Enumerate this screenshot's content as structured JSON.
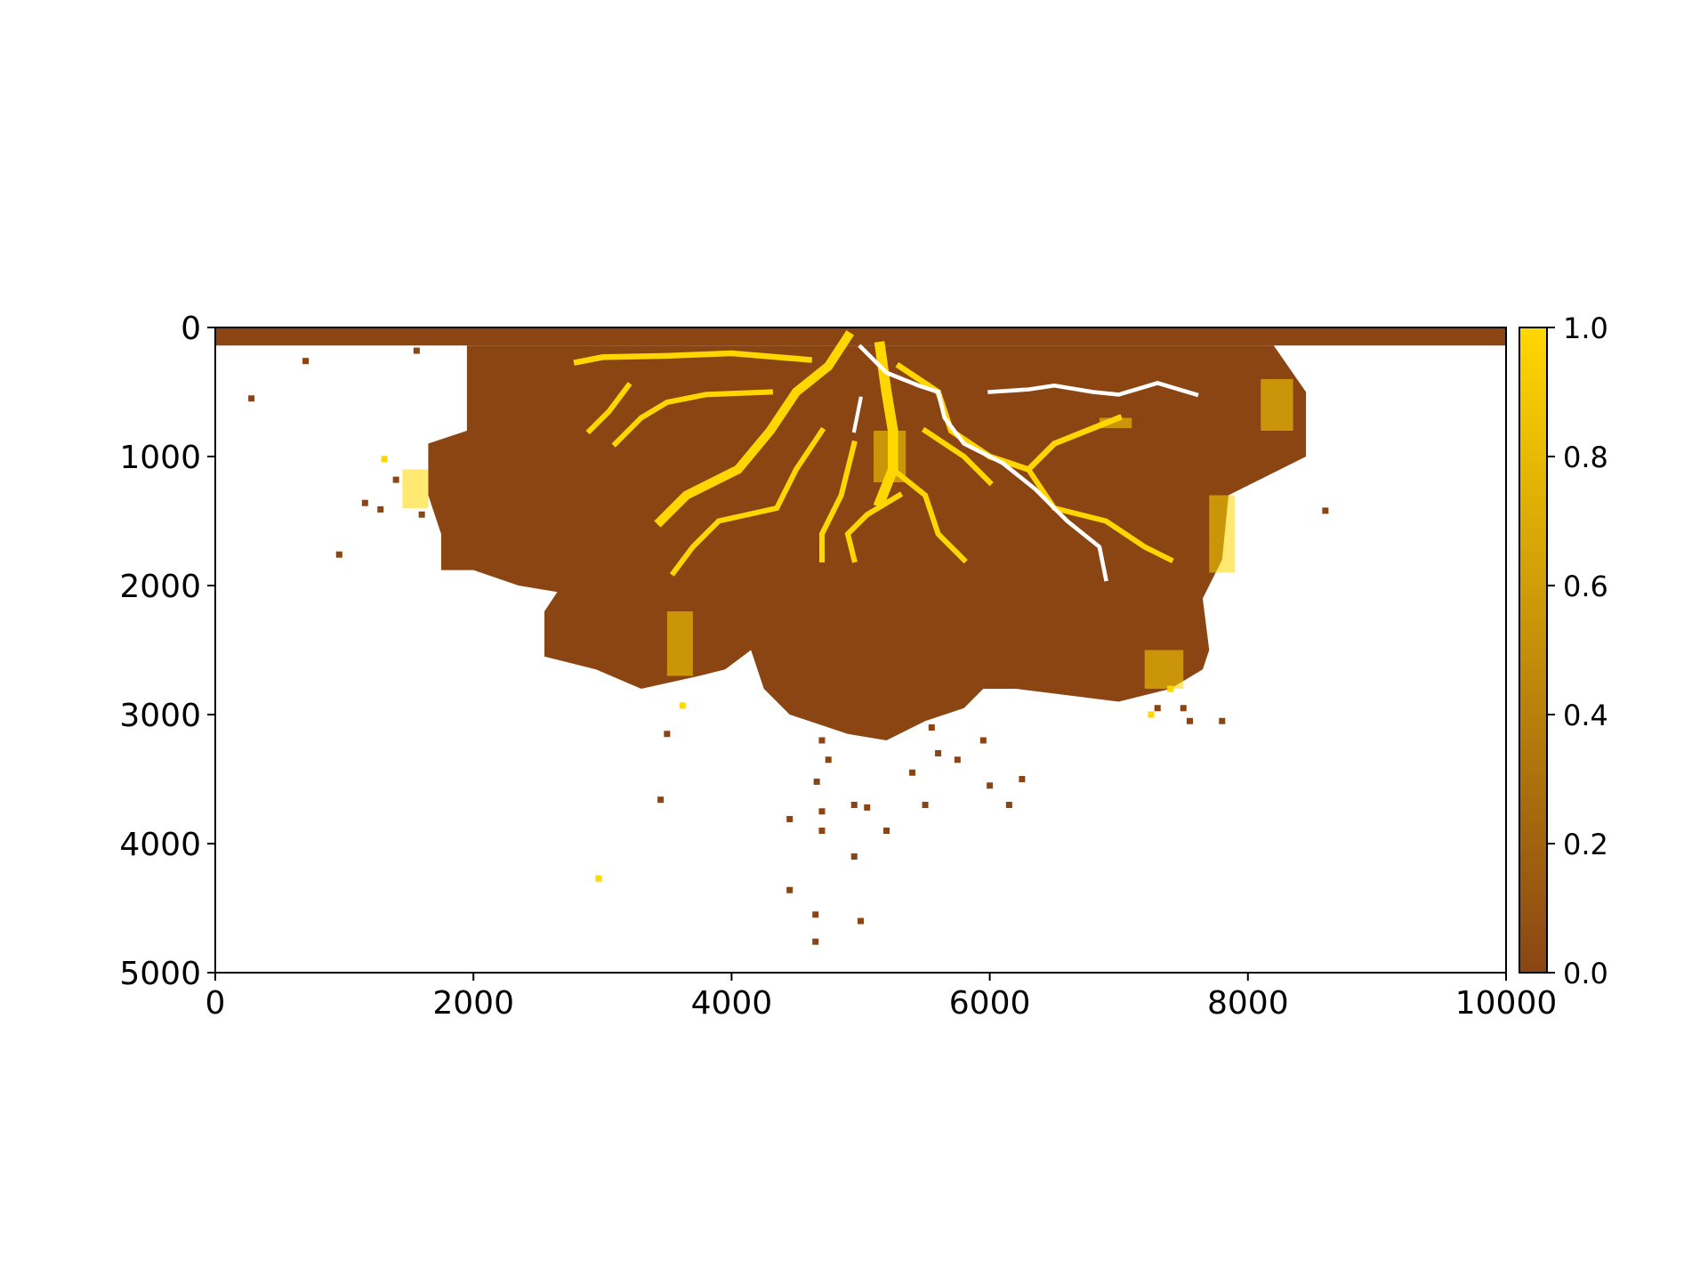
{
  "chart_data": {
    "type": "heatmap",
    "title": "",
    "xlabel": "",
    "ylabel": "",
    "xlim": [
      0,
      10000
    ],
    "ylim": [
      5000,
      0
    ],
    "y_axis_inverted": true,
    "x_ticks": [
      0,
      2000,
      4000,
      6000,
      8000,
      10000
    ],
    "x_tick_labels": [
      "0",
      "2000",
      "4000",
      "6000",
      "8000",
      "10000"
    ],
    "y_ticks": [
      0,
      1000,
      2000,
      3000,
      4000,
      5000
    ],
    "y_tick_labels": [
      "0",
      "1000",
      "2000",
      "3000",
      "4000",
      "5000"
    ],
    "grid": false,
    "colormap": {
      "range": [
        0.0,
        1.0
      ],
      "low_color": "#8B4513",
      "high_color": "#FFD700",
      "ticks": [
        0.0,
        0.2,
        0.4,
        0.6,
        0.8,
        1.0
      ],
      "tick_labels": [
        "0.0",
        "0.2",
        "0.4",
        "0.6",
        "0.8",
        "1.0"
      ]
    },
    "nodata_color": "#FFFFFF",
    "regions": [
      {
        "name": "inlet strip",
        "value": 0.0,
        "polygon": [
          [
            0,
            0
          ],
          [
            10000,
            0
          ],
          [
            10000,
            140
          ],
          [
            0,
            140
          ]
        ]
      },
      {
        "name": "deposit body",
        "value": 0.0,
        "polygon": [
          [
            1950,
            140
          ],
          [
            8200,
            140
          ],
          [
            8450,
            500
          ],
          [
            8450,
            1000
          ],
          [
            7850,
            1300
          ],
          [
            7800,
            1800
          ],
          [
            7650,
            2100
          ],
          [
            7700,
            2500
          ],
          [
            7650,
            2650
          ],
          [
            7400,
            2800
          ],
          [
            7000,
            2900
          ],
          [
            6200,
            2800
          ],
          [
            5950,
            2800
          ],
          [
            5800,
            2950
          ],
          [
            5500,
            3050
          ],
          [
            5200,
            3200
          ],
          [
            4900,
            3150
          ],
          [
            4450,
            3000
          ],
          [
            4250,
            2800
          ],
          [
            4150,
            2500
          ],
          [
            3950,
            2650
          ],
          [
            3750,
            2700
          ],
          [
            3300,
            2800
          ],
          [
            2950,
            2650
          ],
          [
            2550,
            2550
          ],
          [
            2550,
            2200
          ],
          [
            2650,
            2050
          ],
          [
            2350,
            2000
          ],
          [
            2000,
            1880
          ],
          [
            1750,
            1880
          ],
          [
            1750,
            1600
          ],
          [
            1650,
            1300
          ],
          [
            1650,
            900
          ],
          [
            1950,
            800
          ]
        ]
      }
    ],
    "channels": [
      {
        "value": 1.0,
        "width": 70,
        "points": [
          [
            4900,
            70
          ],
          [
            4750,
            300
          ],
          [
            4500,
            500
          ],
          [
            4300,
            800
          ],
          [
            4050,
            1100
          ],
          [
            3650,
            1300
          ],
          [
            3450,
            1500
          ]
        ]
      },
      {
        "value": 1.0,
        "width": 80,
        "points": [
          [
            5150,
            150
          ],
          [
            5200,
            500
          ],
          [
            5250,
            800
          ],
          [
            5250,
            1100
          ],
          [
            5150,
            1350
          ]
        ]
      },
      {
        "value": 1.0,
        "width": 45,
        "points": [
          [
            5300,
            300
          ],
          [
            5600,
            500
          ],
          [
            5700,
            800
          ],
          [
            6000,
            1000
          ],
          [
            6300,
            1100
          ],
          [
            6500,
            900
          ],
          [
            7000,
            700
          ]
        ]
      },
      {
        "value": 1.0,
        "width": 45,
        "points": [
          [
            4600,
            250
          ],
          [
            4000,
            200
          ],
          [
            3500,
            220
          ],
          [
            3000,
            230
          ],
          [
            2800,
            270
          ]
        ]
      },
      {
        "value": 1.0,
        "width": 40,
        "points": [
          [
            4300,
            500
          ],
          [
            3800,
            520
          ],
          [
            3500,
            580
          ],
          [
            3300,
            700
          ],
          [
            3100,
            900
          ]
        ]
      },
      {
        "value": 1.0,
        "width": 40,
        "points": [
          [
            4700,
            800
          ],
          [
            4500,
            1100
          ],
          [
            4350,
            1400
          ],
          [
            3900,
            1500
          ],
          [
            3700,
            1700
          ],
          [
            3550,
            1900
          ]
        ]
      },
      {
        "value": 1.0,
        "width": 40,
        "points": [
          [
            4950,
            900
          ],
          [
            4850,
            1300
          ],
          [
            4700,
            1600
          ],
          [
            4700,
            1800
          ]
        ]
      },
      {
        "value": 1.0,
        "width": 40,
        "points": [
          [
            5250,
            1100
          ],
          [
            5500,
            1300
          ],
          [
            5600,
            1600
          ],
          [
            5800,
            1800
          ]
        ]
      },
      {
        "value": 1.0,
        "width": 40,
        "points": [
          [
            6300,
            1100
          ],
          [
            6500,
            1400
          ],
          [
            6900,
            1500
          ],
          [
            7200,
            1700
          ],
          [
            7400,
            1800
          ]
        ]
      },
      {
        "value": 1.0,
        "width": 40,
        "points": [
          [
            5500,
            800
          ],
          [
            5800,
            1000
          ],
          [
            6000,
            1200
          ]
        ]
      },
      {
        "value": 1.0,
        "width": 40,
        "points": [
          [
            5300,
            1300
          ],
          [
            5050,
            1450
          ],
          [
            4900,
            1600
          ],
          [
            4950,
            1800
          ]
        ]
      },
      {
        "value": 1.0,
        "width": 40,
        "points": [
          [
            3200,
            450
          ],
          [
            3050,
            650
          ],
          [
            2900,
            800
          ]
        ]
      }
    ],
    "nodata_channels": [
      {
        "width": 45,
        "points": [
          [
            5000,
            150
          ],
          [
            5200,
            350
          ],
          [
            5450,
            450
          ],
          [
            5600,
            500
          ]
        ]
      },
      {
        "width": 45,
        "points": [
          [
            5600,
            500
          ],
          [
            5650,
            700
          ],
          [
            5800,
            900
          ],
          [
            6100,
            1050
          ],
          [
            6350,
            1250
          ],
          [
            6600,
            1500
          ],
          [
            6850,
            1700
          ],
          [
            6900,
            1950
          ]
        ]
      },
      {
        "width": 45,
        "points": [
          [
            6000,
            500
          ],
          [
            6300,
            480
          ],
          [
            6500,
            450
          ],
          [
            6800,
            500
          ],
          [
            7000,
            520
          ],
          [
            7300,
            430
          ],
          [
            7600,
            520
          ]
        ]
      },
      {
        "width": 40,
        "points": [
          [
            5000,
            550
          ],
          [
            4950,
            800
          ]
        ]
      }
    ],
    "yellow_patches": [
      {
        "value": 1.0,
        "x0": 3500,
        "y0": 2200,
        "x1": 3700,
        "y1": 2700
      },
      {
        "value": 1.0,
        "x0": 7200,
        "y0": 2500,
        "x1": 7500,
        "y1": 2800
      },
      {
        "value": 1.0,
        "x0": 8100,
        "y0": 400,
        "x1": 8350,
        "y1": 800
      },
      {
        "value": 1.0,
        "x0": 5100,
        "y0": 800,
        "x1": 5350,
        "y1": 1200
      },
      {
        "value": 1.0,
        "x0": 7700,
        "y0": 1300,
        "x1": 7900,
        "y1": 1900
      },
      {
        "value": 1.0,
        "x0": 1450,
        "y0": 1100,
        "x1": 1650,
        "y1": 1400
      },
      {
        "value": 1.0,
        "x0": 6850,
        "y0": 700,
        "x1": 7100,
        "y1": 780
      }
    ],
    "scattered_cells": {
      "value": 0.0,
      "points": [
        [
          280,
          550
        ],
        [
          700,
          260
        ],
        [
          1560,
          180
        ],
        [
          960,
          1760
        ],
        [
          1160,
          1360
        ],
        [
          1280,
          1410
        ],
        [
          1400,
          1180
        ],
        [
          1600,
          1450
        ],
        [
          8600,
          1420
        ],
        [
          3500,
          3150
        ],
        [
          3450,
          3660
        ],
        [
          4450,
          3810
        ],
        [
          4600,
          2980
        ],
        [
          4700,
          3200
        ],
        [
          4750,
          3350
        ],
        [
          4660,
          3520
        ],
        [
          4950,
          3700
        ],
        [
          5050,
          3720
        ],
        [
          4700,
          3750
        ],
        [
          4700,
          3900
        ],
        [
          4950,
          4100
        ],
        [
          5200,
          3900
        ],
        [
          5400,
          3450
        ],
        [
          5500,
          3700
        ],
        [
          5600,
          3300
        ],
        [
          5550,
          3100
        ],
        [
          5750,
          3350
        ],
        [
          5950,
          3200
        ],
        [
          6000,
          3550
        ],
        [
          6150,
          3700
        ],
        [
          6250,
          3500
        ],
        [
          4450,
          4360
        ],
        [
          4650,
          4550
        ],
        [
          5000,
          4600
        ],
        [
          4650,
          4760
        ],
        [
          7300,
          2950
        ],
        [
          7550,
          3050
        ],
        [
          7800,
          3050
        ],
        [
          7500,
          2950
        ]
      ]
    },
    "scattered_yellow_cells": {
      "value": 1.0,
      "points": [
        [
          2970,
          4270
        ],
        [
          3620,
          2930
        ],
        [
          7250,
          3000
        ],
        [
          7400,
          2800
        ],
        [
          1310,
          1020
        ]
      ]
    }
  }
}
